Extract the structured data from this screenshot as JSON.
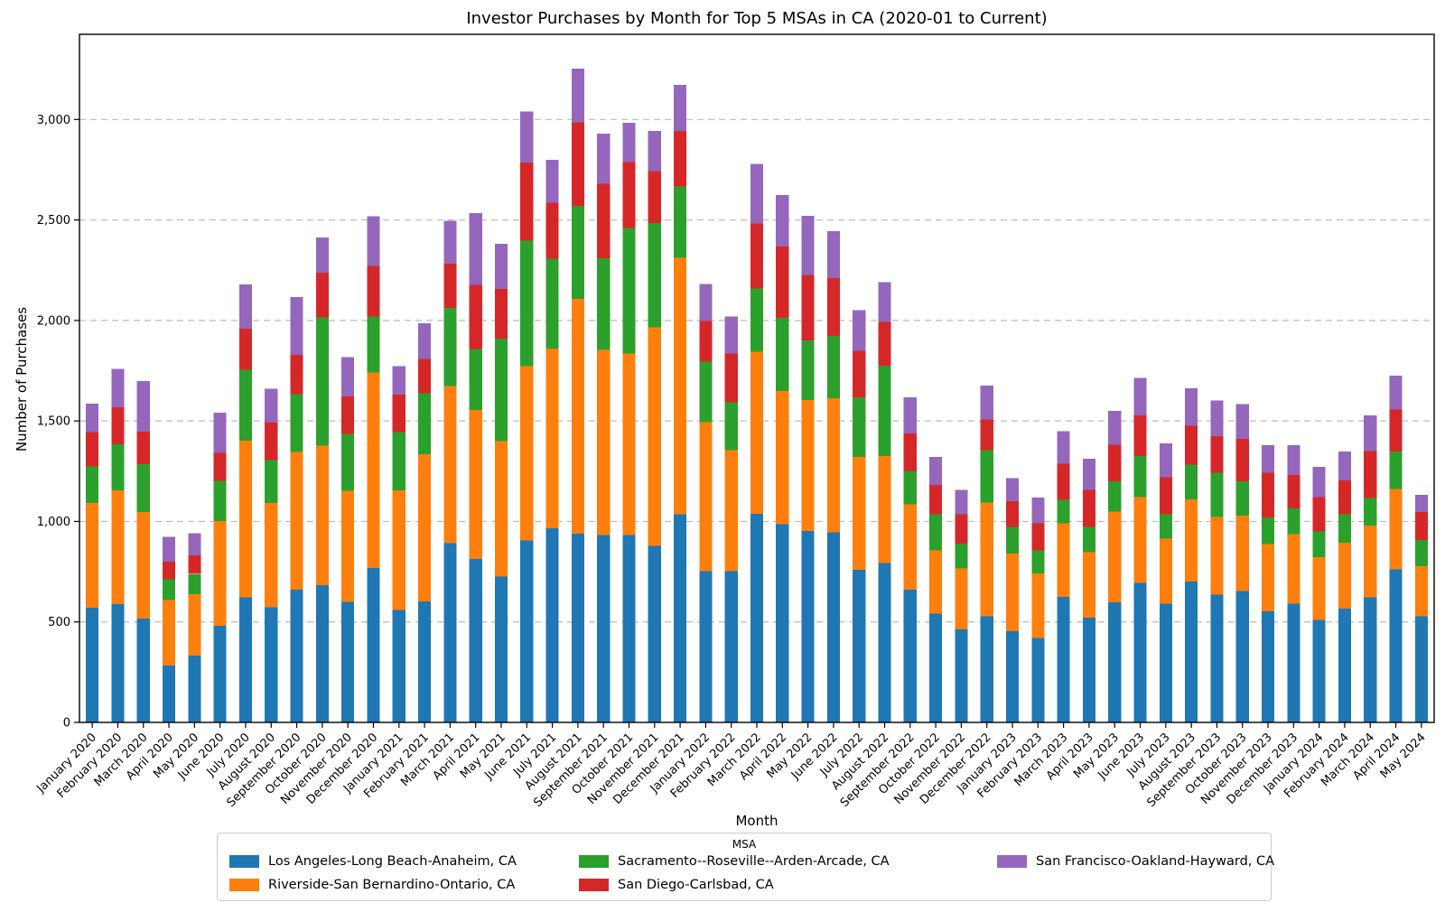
{
  "chart_data": {
    "type": "bar",
    "stacked": true,
    "title": "Investor Purchases by Month for Top 5 MSAs in CA (2020-01 to Current)",
    "xlabel": "Month",
    "ylabel": "Number of Purchases",
    "legend_title": "MSA",
    "legend_position": "bottom",
    "grid": "horizontal-dashed",
    "ylim": [
      0,
      3424
    ],
    "yticks": [
      0,
      500,
      1000,
      1500,
      2000,
      2500,
      3000
    ],
    "ytick_labels": [
      "0",
      "500",
      "1,000",
      "1,500",
      "2,000",
      "2,500",
      "3,000"
    ],
    "categories": [
      "January 2020",
      "February 2020",
      "March 2020",
      "April 2020",
      "May 2020",
      "June 2020",
      "July 2020",
      "August 2020",
      "September 2020",
      "October 2020",
      "November 2020",
      "December 2020",
      "January 2021",
      "February 2021",
      "March 2021",
      "April 2021",
      "May 2021",
      "June 2021",
      "July 2021",
      "August 2021",
      "September 2021",
      "October 2021",
      "November 2021",
      "December 2021",
      "January 2022",
      "February 2022",
      "March 2022",
      "April 2022",
      "May 2022",
      "June 2022",
      "July 2022",
      "August 2022",
      "September 2022",
      "October 2022",
      "November 2022",
      "December 2022",
      "January 2023",
      "February 2023",
      "March 2023",
      "April 2023",
      "May 2023",
      "June 2023",
      "July 2023",
      "August 2023",
      "September 2023",
      "October 2023",
      "November 2023",
      "December 2023",
      "January 2024",
      "February 2024",
      "March 2024",
      "April 2024",
      "May 2024"
    ],
    "series": [
      {
        "name": "Los Angeles-Long Beach-Anaheim, CA",
        "color": "#1f77b4",
        "values": [
          571,
          588,
          517,
          282,
          332,
          480,
          623,
          574,
          661,
          683,
          599,
          768,
          559,
          603,
          892,
          813,
          725,
          905,
          965,
          938,
          933,
          932,
          878,
          1035,
          752,
          752,
          1037,
          987,
          953,
          945,
          759,
          792,
          661,
          541,
          462,
          529,
          454,
          421,
          625,
          522,
          597,
          695,
          590,
          702,
          635,
          654,
          552,
          592,
          510,
          567,
          622,
          762,
          529
        ]
      },
      {
        "name": "Riverside-San Bernardino-Ontario, CA",
        "color": "#ff7f0e",
        "values": [
          520,
          566,
          529,
          327,
          305,
          521,
          779,
          517,
          685,
          695,
          554,
          972,
          596,
          732,
          782,
          741,
          675,
          867,
          895,
          1169,
          920,
          903,
          1087,
          1276,
          742,
          603,
          808,
          663,
          650,
          668,
          563,
          533,
          424,
          315,
          303,
          566,
          386,
          321,
          365,
          326,
          453,
          427,
          325,
          408,
          387,
          374,
          335,
          345,
          312,
          327,
          357,
          400,
          248
        ]
      },
      {
        "name": "Sacramento--Roseville--Arden-Arcade, CA",
        "color": "#2ca02c",
        "values": [
          182,
          229,
          238,
          103,
          101,
          202,
          352,
          214,
          288,
          638,
          282,
          279,
          290,
          303,
          388,
          305,
          510,
          624,
          447,
          462,
          456,
          624,
          519,
          355,
          300,
          237,
          314,
          364,
          298,
          309,
          295,
          450,
          165,
          179,
          124,
          260,
          132,
          113,
          117,
          124,
          150,
          203,
          120,
          173,
          220,
          172,
          133,
          128,
          128,
          141,
          138,
          185,
          130
        ]
      },
      {
        "name": "San Diego-Carlsbad, CA",
        "color": "#d62728",
        "values": [
          171,
          184,
          163,
          87,
          94,
          139,
          205,
          187,
          195,
          221,
          186,
          252,
          185,
          171,
          220,
          318,
          246,
          389,
          278,
          417,
          370,
          328,
          258,
          278,
          204,
          243,
          323,
          353,
          325,
          288,
          233,
          217,
          187,
          147,
          146,
          153,
          128,
          136,
          180,
          185,
          182,
          202,
          185,
          192,
          183,
          210,
          222,
          165,
          172,
          169,
          234,
          210,
          140
        ]
      },
      {
        "name": "San Francisco-Oakland-Hayward, CA",
        "color": "#9467bd",
        "values": [
          141,
          193,
          252,
          124,
          110,
          200,
          221,
          168,
          287,
          176,
          196,
          248,
          142,
          176,
          215,
          357,
          225,
          254,
          214,
          267,
          251,
          196,
          201,
          229,
          183,
          184,
          297,
          256,
          295,
          235,
          202,
          198,
          180,
          138,
          122,
          169,
          115,
          128,
          162,
          155,
          168,
          188,
          169,
          187,
          177,
          174,
          138,
          150,
          150,
          143,
          176,
          169,
          85
        ]
      }
    ]
  }
}
